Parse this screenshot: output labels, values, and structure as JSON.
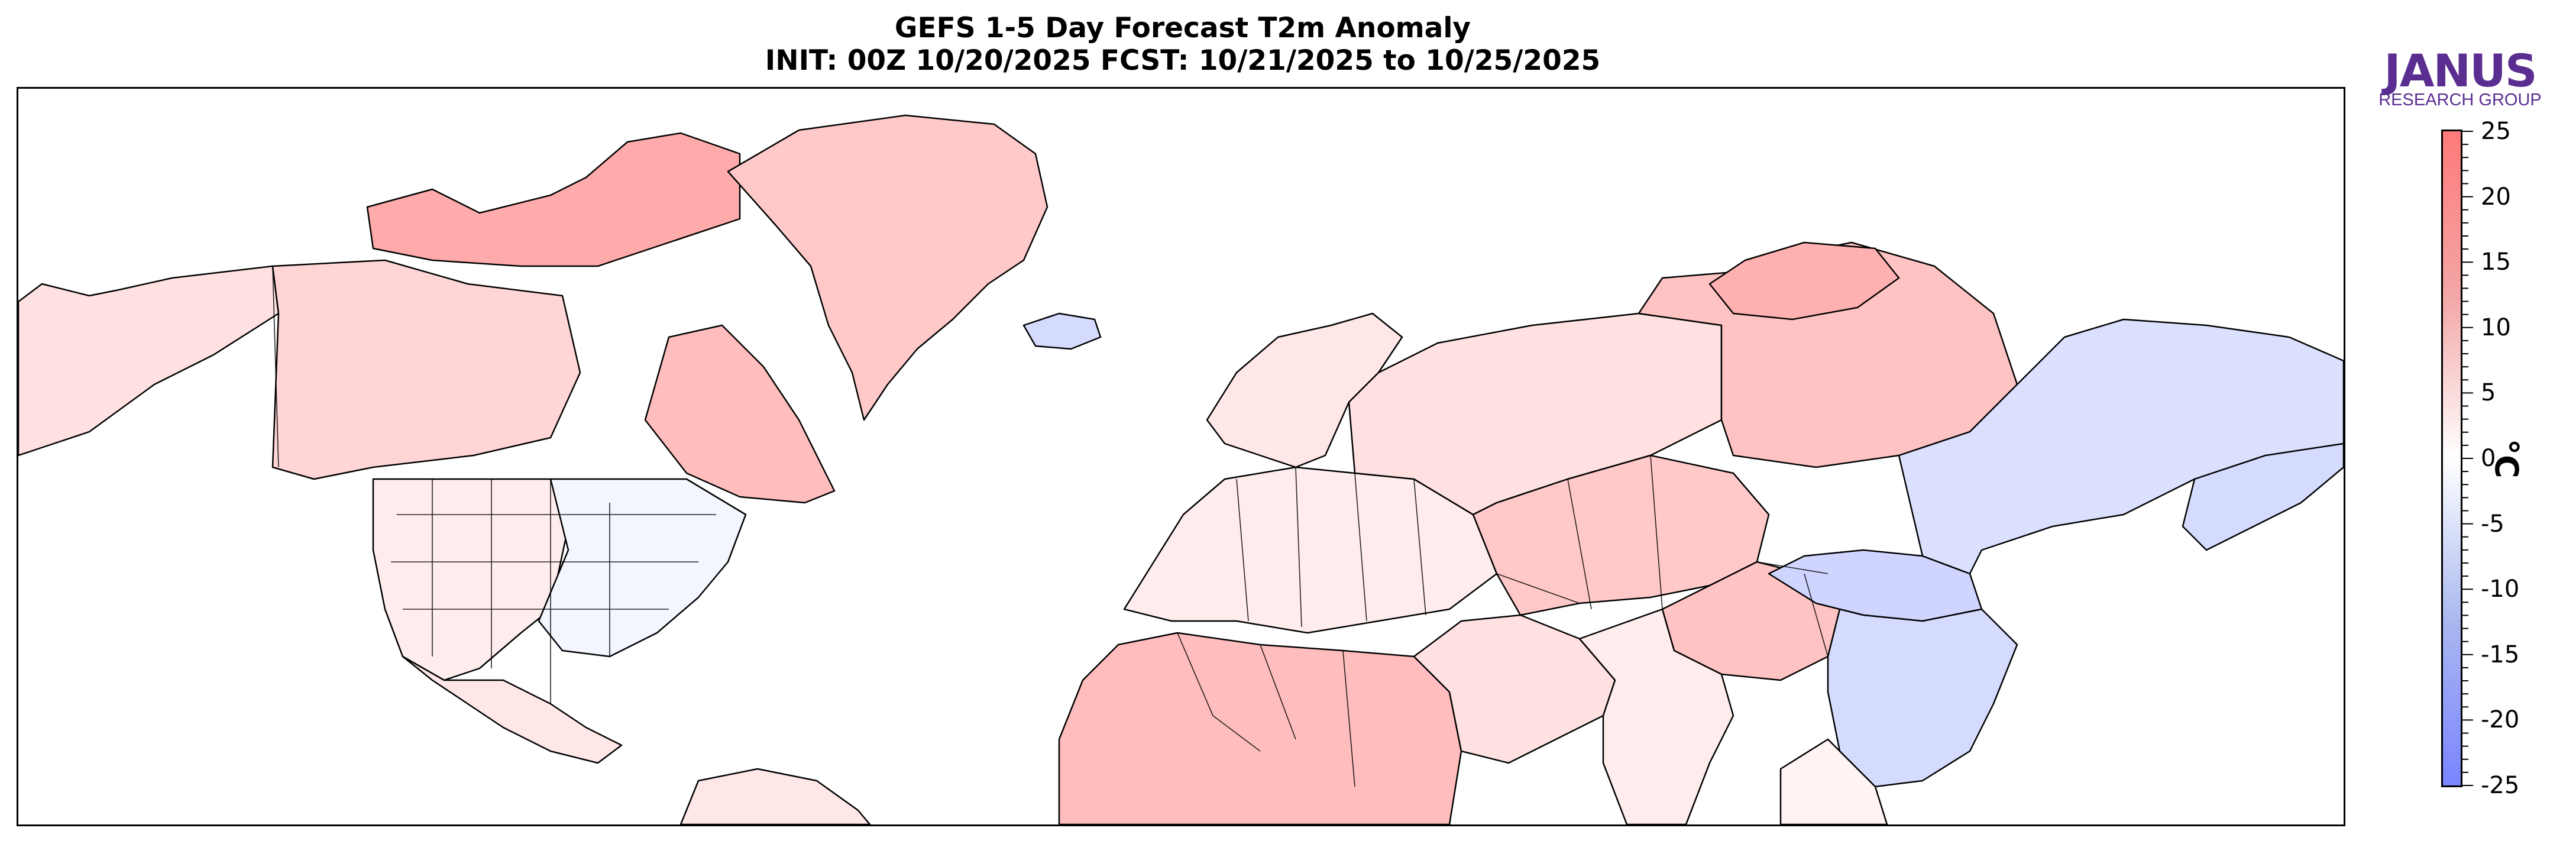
{
  "title": {
    "line1": "GEFS 1-5 Day Forecast T2m Anomaly",
    "line2": "INIT: 00Z 10/20/2025    FCST: 10/21/2025 to 10/25/2025"
  },
  "logo": {
    "word": "JANUS",
    "subtitle": "RESEARCH GROUP",
    "color": "#5a2d91"
  },
  "colorbar": {
    "unit": "°C",
    "ticks": [
      "25",
      "20",
      "15",
      "10",
      "5",
      "0",
      "-5",
      "-10",
      "-15",
      "-20",
      "-25"
    ],
    "range": [
      -25,
      25
    ],
    "warm_color": "#ff7a7a",
    "cold_color": "#7a84ff"
  },
  "map": {
    "regions": [
      {
        "name": "alaska",
        "anomaly": 5
      },
      {
        "name": "western-canada",
        "anomaly": 7
      },
      {
        "name": "canadian-arctic-islands",
        "anomaly": 14
      },
      {
        "name": "hudson-bay-east",
        "anomaly": 11
      },
      {
        "name": "greenland",
        "anomaly": 9
      },
      {
        "name": "conus-west",
        "anomaly": 3
      },
      {
        "name": "conus-east",
        "anomaly": -2
      },
      {
        "name": "mexico",
        "anomaly": 4
      },
      {
        "name": "caribbean-venezuela",
        "anomaly": 4
      },
      {
        "name": "iceland",
        "anomaly": -7
      },
      {
        "name": "europe",
        "anomaly": 3
      },
      {
        "name": "scandinavia",
        "anomaly": 4
      },
      {
        "name": "north-africa",
        "anomaly": 11
      },
      {
        "name": "middle-east",
        "anomaly": 5
      },
      {
        "name": "russia-west",
        "anomaly": 5
      },
      {
        "name": "siberia-north",
        "anomaly": 10
      },
      {
        "name": "taymyr",
        "anomaly": 13
      },
      {
        "name": "central-asia",
        "anomaly": 9
      },
      {
        "name": "tibet",
        "anomaly": 10
      },
      {
        "name": "india",
        "anomaly": 3
      },
      {
        "name": "mongolia",
        "anomaly": -8
      },
      {
        "name": "china-east",
        "anomaly": -7
      },
      {
        "name": "east-siberia",
        "anomaly": -6
      },
      {
        "name": "kamchatka",
        "anomaly": -7
      },
      {
        "name": "southeast-asia",
        "anomaly": 2
      }
    ]
  }
}
